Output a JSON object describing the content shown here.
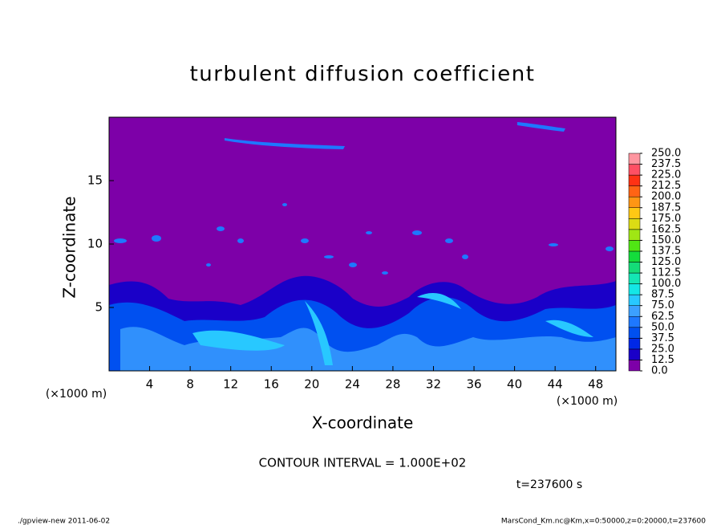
{
  "chart_data": {
    "type": "contour",
    "title": "turbulent diffusion coefficient",
    "xlabel": "X-coordinate",
    "ylabel": "Z-coordinate",
    "x_unit": "(×1000 m)",
    "y_unit": "(×1000 m)",
    "xlim": [
      0,
      50
    ],
    "xticks": [
      4,
      8,
      12,
      16,
      20,
      24,
      28,
      32,
      36,
      40,
      44,
      48
    ],
    "ylim": [
      0,
      20
    ],
    "yticks": [
      5,
      10,
      15
    ],
    "levels": [
      {
        "value": 0,
        "label": "0.0"
      },
      {
        "value": 12.5,
        "label": "12.5"
      },
      {
        "value": 25,
        "label": "25.0"
      },
      {
        "value": 37.5,
        "label": "37.5"
      },
      {
        "value": 50,
        "label": "50.0"
      },
      {
        "value": 62.5,
        "label": "62.5"
      },
      {
        "value": 75,
        "label": "75.0"
      },
      {
        "value": 87.5,
        "label": "87.5"
      },
      {
        "value": 100,
        "label": "100.0"
      },
      {
        "value": 112.5,
        "label": "112.5"
      },
      {
        "value": 125,
        "label": "125.0"
      },
      {
        "value": 137.5,
        "label": "137.5"
      },
      {
        "value": 150,
        "label": "150.0"
      },
      {
        "value": 162.5,
        "label": "162.5"
      },
      {
        "value": 175,
        "label": "175.0"
      },
      {
        "value": 187.5,
        "label": "187.5"
      },
      {
        "value": 200,
        "label": "200.0"
      },
      {
        "value": 212.5,
        "label": "212.5"
      },
      {
        "value": 225,
        "label": "225.0"
      },
      {
        "value": 237.5,
        "label": "237.5"
      },
      {
        "value": 250,
        "label": "250.0"
      }
    ],
    "colors": [
      "#7d00a8",
      "#1a00c8",
      "#0028e6",
      "#0050f0",
      "#1e78ff",
      "#3ca0ff",
      "#28c8ff",
      "#14e6e6",
      "#14e6b4",
      "#14dc78",
      "#14dc3c",
      "#50e614",
      "#a0e614",
      "#dcdc14",
      "#ffc814",
      "#ff9614",
      "#ff6414",
      "#ff3214",
      "#ff5064",
      "#ff96a0"
    ],
    "contour_interval": "CONTOUR INTERVAL = 1.000E+02",
    "time": "t=237600 s"
  },
  "footer": {
    "left": "./gpview-new   2011-06-02",
    "right": "MarsCond_Km.nc@Km,x=0:50000,z=0:20000,t=237600"
  }
}
